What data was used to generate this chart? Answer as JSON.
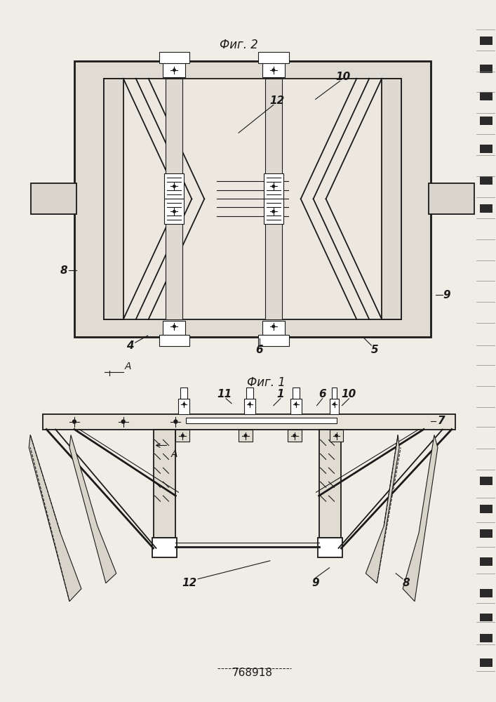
{
  "title": "768918",
  "fig1_label": "Фиг. 1",
  "fig2_label": "Фиг. 2",
  "bg_color": "#f0ede6",
  "line_color": "#1a1a1a",
  "fig_width": 7.07,
  "fig_height": 10.0,
  "dpi": 100
}
